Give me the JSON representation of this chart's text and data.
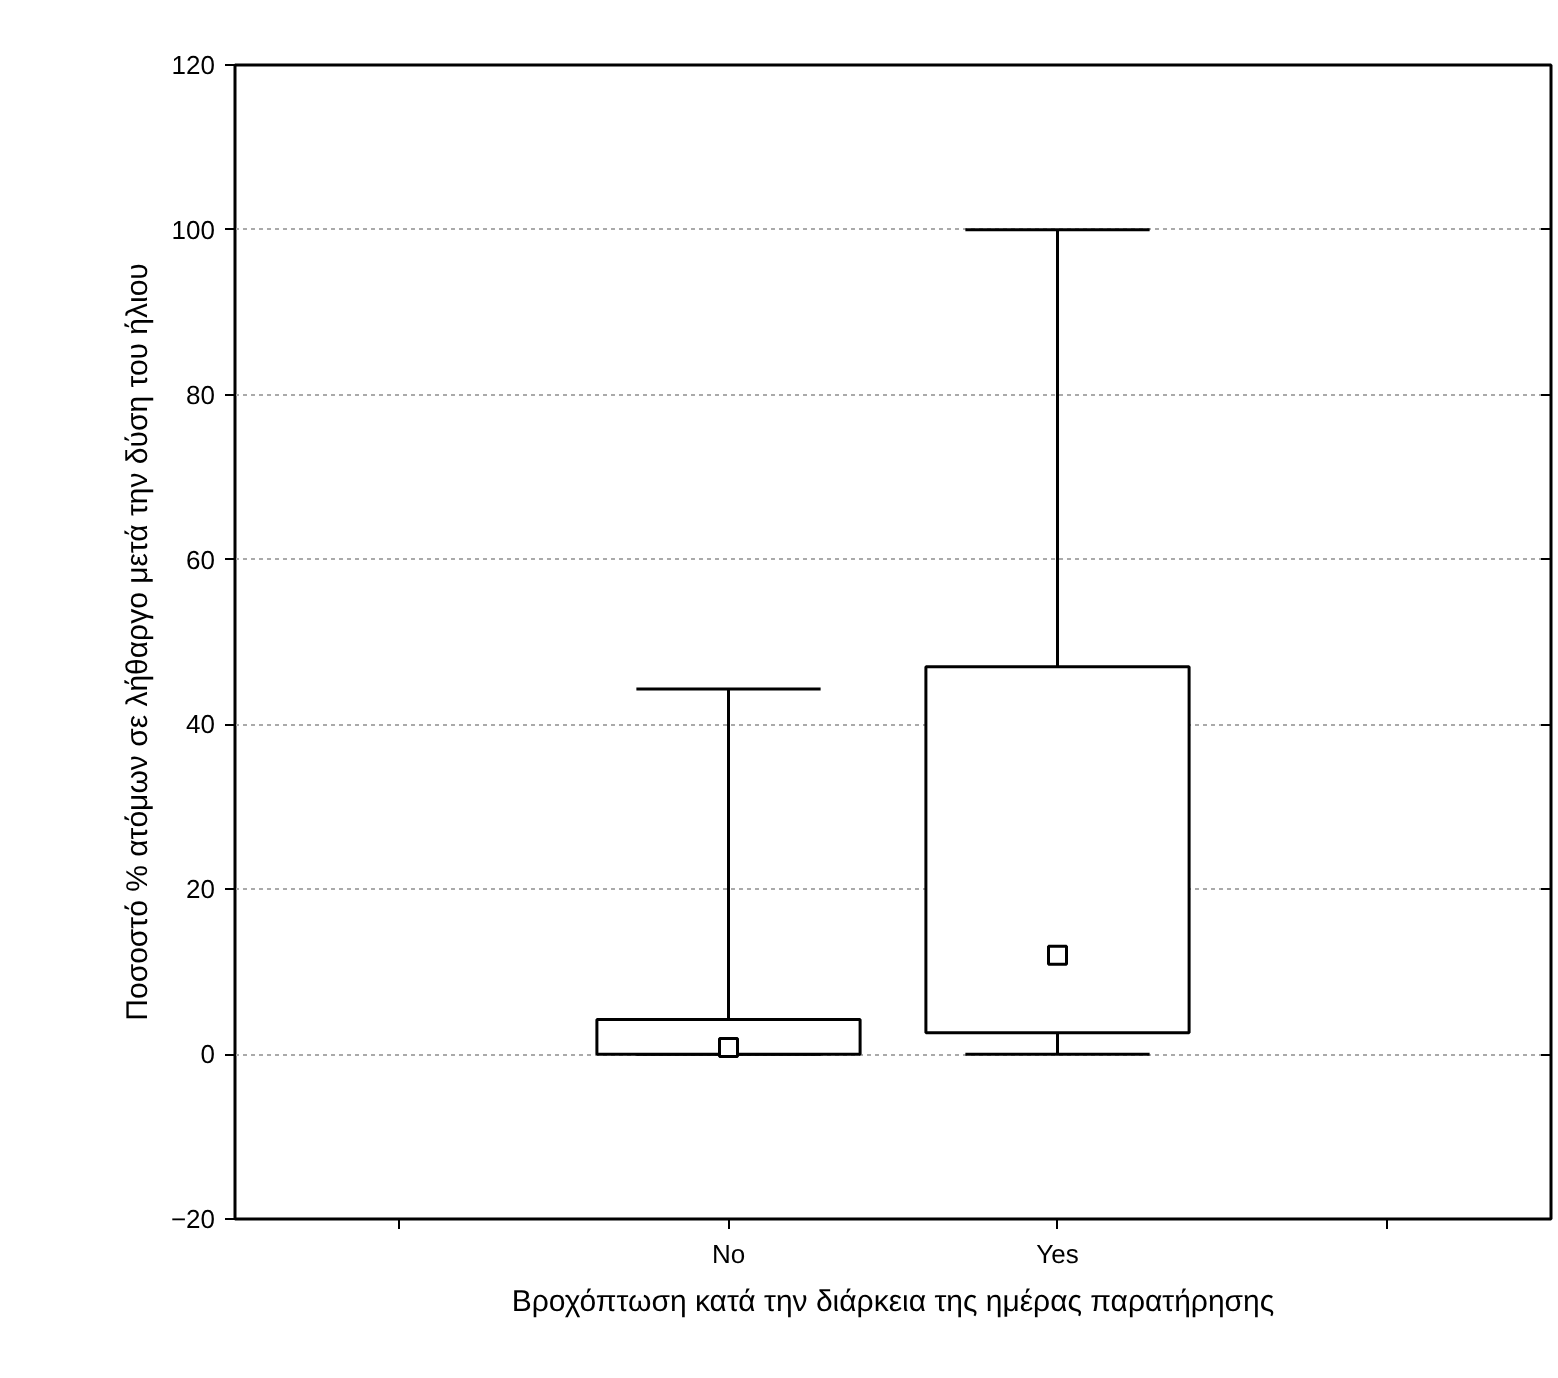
{
  "chart_data": {
    "type": "box",
    "xlabel": "Βροχόπτωση κατά την διάρκεια της ημέρας παρατήρησης",
    "ylabel": "Ποσοστό % ατόμων σε λήθαργο μετά την δύση του ήλιου",
    "categories": [
      "No",
      "Yes"
    ],
    "boxes": [
      {
        "low": 0,
        "q1": 0,
        "median": 0.8,
        "q3": 4.2,
        "high": 44.3
      },
      {
        "low": 0,
        "q1": 2.6,
        "median": 12,
        "q3": 47,
        "high": 100
      }
    ],
    "ylim": [
      -20,
      120
    ],
    "yticks": [
      -20,
      0,
      20,
      40,
      60,
      80,
      100,
      120
    ],
    "grid": "y",
    "marker": "square"
  }
}
